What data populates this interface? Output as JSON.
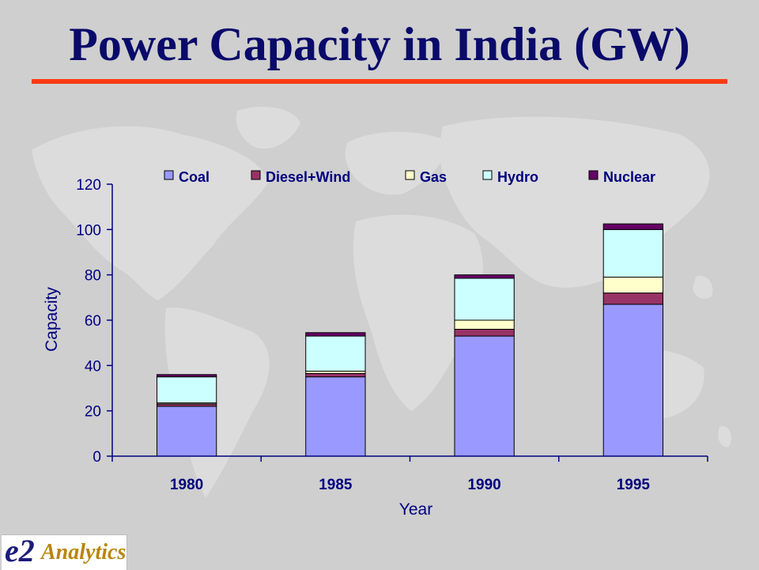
{
  "slide": {
    "title": "Power Capacity in India (GW)",
    "accent_color": "#ff3b14",
    "title_color": "#0a0a6b"
  },
  "logo": {
    "mark": "e2",
    "word": "Analytics",
    "mark_color": "#1c1c7a",
    "word_color": "#b8860b"
  },
  "chart_data": {
    "type": "bar",
    "stacked": true,
    "title": "",
    "xlabel": "Year",
    "ylabel": "Capacity",
    "ylim": [
      0,
      120
    ],
    "yticks": [
      0,
      20,
      40,
      60,
      80,
      100,
      120
    ],
    "categories": [
      "1980",
      "1985",
      "1990",
      "1995"
    ],
    "legend_position": "top",
    "grid": false,
    "series": [
      {
        "name": "Coal",
        "color": "#9999ff",
        "values": [
          22,
          35,
          53,
          67
        ]
      },
      {
        "name": "Diesel+Wind",
        "color": "#993366",
        "values": [
          1,
          1.5,
          3,
          5
        ]
      },
      {
        "name": "Gas",
        "color": "#ffffcc",
        "values": [
          0.5,
          1,
          4,
          7
        ]
      },
      {
        "name": "Hydro",
        "color": "#ccffff",
        "values": [
          11.5,
          15.5,
          18.5,
          21
        ]
      },
      {
        "name": "Nuclear",
        "color": "#660066",
        "values": [
          1,
          1.5,
          1.5,
          2.5
        ]
      }
    ]
  }
}
